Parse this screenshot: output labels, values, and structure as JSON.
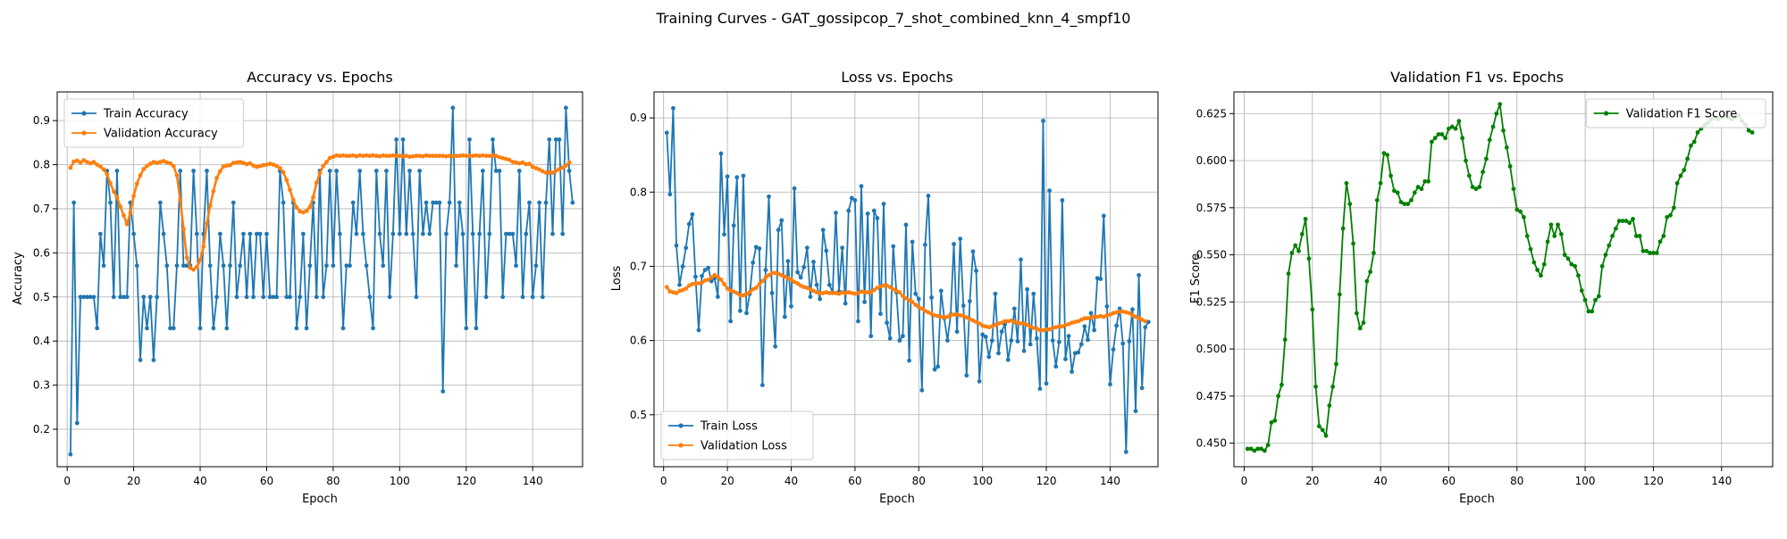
{
  "figure": {
    "suptitle": "Training Curves - GAT_gossipcop_7_shot_combined_knn_4_smpf10"
  },
  "colors": {
    "train": "#1f77b4",
    "validation": "#ff7f0e",
    "f1": "#008000",
    "grid": "#b0b0b0"
  },
  "chart_data": [
    {
      "type": "line",
      "title": "Accuracy vs. Epochs",
      "xlabel": "Epoch",
      "ylabel": "Accuracy",
      "xlim": [
        -3,
        155
      ],
      "ylim": [
        0.115,
        0.965
      ],
      "xticks": [
        0,
        20,
        40,
        60,
        80,
        100,
        120,
        140
      ],
      "yticks": [
        0.2,
        0.3,
        0.4,
        0.5,
        0.6,
        0.7,
        0.8,
        0.9
      ],
      "grid": true,
      "legend": "upper-left",
      "x_start": 1,
      "series": [
        {
          "name": "Train Accuracy",
          "color": "#1f77b4",
          "values": [
            0.143,
            0.714,
            0.214,
            0.5,
            0.5,
            0.5,
            0.5,
            0.5,
            0.429,
            0.643,
            0.571,
            0.786,
            0.714,
            0.5,
            0.786,
            0.5,
            0.5,
            0.5,
            0.714,
            0.643,
            0.571,
            0.357,
            0.5,
            0.429,
            0.5,
            0.357,
            0.5,
            0.714,
            0.643,
            0.571,
            0.429,
            0.429,
            0.571,
            0.786,
            0.571,
            0.571,
            0.571,
            0.786,
            0.643,
            0.429,
            0.643,
            0.786,
            0.571,
            0.429,
            0.5,
            0.643,
            0.571,
            0.429,
            0.571,
            0.714,
            0.5,
            0.571,
            0.643,
            0.5,
            0.643,
            0.5,
            0.643,
            0.643,
            0.5,
            0.643,
            0.5,
            0.5,
            0.5,
            0.786,
            0.714,
            0.5,
            0.5,
            0.714,
            0.429,
            0.5,
            0.643,
            0.429,
            0.571,
            0.714,
            0.5,
            0.786,
            0.5,
            0.571,
            0.786,
            0.571,
            0.786,
            0.643,
            0.429,
            0.571,
            0.571,
            0.714,
            0.643,
            0.786,
            0.643,
            0.571,
            0.5,
            0.429,
            0.786,
            0.643,
            0.571,
            0.786,
            0.5,
            0.643,
            0.857,
            0.643,
            0.857,
            0.643,
            0.786,
            0.643,
            0.5,
            0.786,
            0.643,
            0.714,
            0.643,
            0.714,
            0.714,
            0.714,
            0.286,
            0.643,
            0.714,
            0.929,
            0.571,
            0.714,
            0.643,
            0.429,
            0.857,
            0.643,
            0.429,
            0.643,
            0.786,
            0.5,
            0.643,
            0.857,
            0.786,
            0.786,
            0.5,
            0.643,
            0.643,
            0.643,
            0.571,
            0.786,
            0.5,
            0.643,
            0.714,
            0.5,
            0.571,
            0.714,
            0.5,
            0.714,
            0.857,
            0.643,
            0.857,
            0.857,
            0.643,
            0.929,
            0.786,
            0.714
          ]
        },
        {
          "name": "Validation Accuracy",
          "color": "#ff7f0e",
          "values": [
            0.793,
            0.807,
            0.809,
            0.805,
            0.81,
            0.806,
            0.803,
            0.806,
            0.8,
            0.796,
            0.789,
            0.778,
            0.758,
            0.739,
            0.726,
            0.705,
            0.685,
            0.665,
            0.691,
            0.729,
            0.757,
            0.776,
            0.79,
            0.797,
            0.802,
            0.806,
            0.804,
            0.806,
            0.808,
            0.805,
            0.803,
            0.797,
            0.776,
            0.72,
            0.654,
            0.589,
            0.566,
            0.562,
            0.568,
            0.584,
            0.614,
            0.666,
            0.707,
            0.74,
            0.77,
            0.785,
            0.796,
            0.798,
            0.799,
            0.804,
            0.805,
            0.806,
            0.804,
            0.801,
            0.803,
            0.798,
            0.795,
            0.797,
            0.799,
            0.8,
            0.802,
            0.8,
            0.797,
            0.792,
            0.783,
            0.765,
            0.743,
            0.72,
            0.703,
            0.694,
            0.692,
            0.695,
            0.704,
            0.726,
            0.759,
            0.781,
            0.797,
            0.806,
            0.815,
            0.818,
            0.821,
            0.82,
            0.821,
            0.82,
            0.82,
            0.821,
            0.819,
            0.821,
            0.82,
            0.821,
            0.82,
            0.821,
            0.82,
            0.819,
            0.821,
            0.82,
            0.82,
            0.821,
            0.82,
            0.82,
            0.819,
            0.82,
            0.818,
            0.819,
            0.82,
            0.82,
            0.819,
            0.821,
            0.82,
            0.82,
            0.82,
            0.82,
            0.82,
            0.819,
            0.82,
            0.819,
            0.82,
            0.82,
            0.821,
            0.82,
            0.82,
            0.82,
            0.821,
            0.82,
            0.821,
            0.82,
            0.82,
            0.821,
            0.82,
            0.817,
            0.815,
            0.813,
            0.811,
            0.806,
            0.805,
            0.803,
            0.805,
            0.801,
            0.802,
            0.795,
            0.792,
            0.789,
            0.785,
            0.782,
            0.782,
            0.782,
            0.786,
            0.79,
            0.793,
            0.798,
            0.805
          ]
        }
      ]
    },
    {
      "type": "line",
      "title": "Loss vs. Epochs",
      "xlabel": "Epoch",
      "ylabel": "Loss",
      "xlim": [
        -3,
        155
      ],
      "ylim": [
        0.43,
        0.935
      ],
      "xticks": [
        0,
        20,
        40,
        60,
        80,
        100,
        120,
        140
      ],
      "yticks": [
        0.5,
        0.6,
        0.7,
        0.8,
        0.9
      ],
      "grid": true,
      "legend": "lower-left",
      "x_start": 1,
      "series": [
        {
          "name": "Train Loss",
          "color": "#1f77b4",
          "values": [
            0.88,
            0.797,
            0.913,
            0.728,
            0.675,
            0.7,
            0.725,
            0.757,
            0.77,
            0.686,
            0.614,
            0.687,
            0.695,
            0.698,
            0.68,
            0.684,
            0.659,
            0.852,
            0.743,
            0.821,
            0.626,
            0.755,
            0.82,
            0.64,
            0.822,
            0.637,
            0.663,
            0.705,
            0.726,
            0.724,
            0.54,
            0.695,
            0.794,
            0.664,
            0.592,
            0.749,
            0.762,
            0.632,
            0.707,
            0.646,
            0.805,
            0.692,
            0.685,
            0.699,
            0.725,
            0.659,
            0.706,
            0.675,
            0.656,
            0.749,
            0.721,
            0.675,
            0.665,
            0.772,
            0.666,
            0.725,
            0.65,
            0.775,
            0.792,
            0.789,
            0.626,
            0.808,
            0.652,
            0.771,
            0.606,
            0.775,
            0.765,
            0.636,
            0.784,
            0.624,
            0.603,
            0.727,
            0.665,
            0.6,
            0.606,
            0.756,
            0.573,
            0.733,
            0.663,
            0.656,
            0.533,
            0.729,
            0.795,
            0.658,
            0.561,
            0.565,
            0.667,
            0.63,
            0.6,
            0.635,
            0.73,
            0.612,
            0.737,
            0.647,
            0.553,
            0.653,
            0.72,
            0.694,
            0.545,
            0.608,
            0.605,
            0.578,
            0.6,
            0.663,
            0.583,
            0.612,
            0.622,
            0.574,
            0.6,
            0.643,
            0.599,
            0.709,
            0.586,
            0.669,
            0.595,
            0.663,
            0.603,
            0.535,
            0.896,
            0.542,
            0.802,
            0.6,
            0.565,
            0.598,
            0.789,
            0.575,
            0.606,
            0.558,
            0.583,
            0.584,
            0.595,
            0.619,
            0.601,
            0.637,
            0.614,
            0.684,
            0.683,
            0.768,
            0.646,
            0.541,
            0.588,
            0.62,
            0.643,
            0.596,
            0.45,
            0.599,
            0.642,
            0.505,
            0.688,
            0.536,
            0.618,
            0.625
          ]
        },
        {
          "name": "Validation Loss",
          "color": "#ff7f0e",
          "values": [
            0.672,
            0.666,
            0.665,
            0.664,
            0.667,
            0.668,
            0.67,
            0.674,
            0.676,
            0.677,
            0.677,
            0.678,
            0.681,
            0.682,
            0.685,
            0.688,
            0.686,
            0.682,
            0.676,
            0.67,
            0.667,
            0.666,
            0.664,
            0.661,
            0.661,
            0.663,
            0.665,
            0.669,
            0.671,
            0.676,
            0.68,
            0.685,
            0.688,
            0.691,
            0.691,
            0.69,
            0.688,
            0.686,
            0.684,
            0.682,
            0.679,
            0.677,
            0.674,
            0.672,
            0.671,
            0.669,
            0.667,
            0.665,
            0.664,
            0.664,
            0.665,
            0.664,
            0.664,
            0.664,
            0.663,
            0.665,
            0.664,
            0.665,
            0.664,
            0.663,
            0.664,
            0.666,
            0.665,
            0.665,
            0.665,
            0.668,
            0.671,
            0.673,
            0.674,
            0.674,
            0.672,
            0.669,
            0.667,
            0.665,
            0.66,
            0.657,
            0.654,
            0.652,
            0.648,
            0.645,
            0.643,
            0.64,
            0.638,
            0.636,
            0.634,
            0.633,
            0.632,
            0.631,
            0.632,
            0.634,
            0.635,
            0.635,
            0.634,
            0.633,
            0.631,
            0.629,
            0.627,
            0.625,
            0.623,
            0.62,
            0.619,
            0.618,
            0.619,
            0.621,
            0.623,
            0.624,
            0.626,
            0.626,
            0.627,
            0.625,
            0.624,
            0.623,
            0.623,
            0.621,
            0.619,
            0.617,
            0.616,
            0.614,
            0.614,
            0.615,
            0.615,
            0.617,
            0.618,
            0.619,
            0.619,
            0.621,
            0.622,
            0.624,
            0.625,
            0.626,
            0.628,
            0.63,
            0.63,
            0.631,
            0.632,
            0.632,
            0.633,
            0.632,
            0.634,
            0.635,
            0.637,
            0.638,
            0.639,
            0.639,
            0.638,
            0.637,
            0.634,
            0.632,
            0.63,
            0.628,
            0.626
          ]
        }
      ]
    },
    {
      "type": "line",
      "title": "Validation F1 vs. Epochs",
      "xlabel": "Epoch",
      "ylabel": "F1 Score",
      "xlim": [
        -3,
        155
      ],
      "ylim": [
        0.4375,
        0.6365
      ],
      "xticks": [
        0,
        20,
        40,
        60,
        80,
        100,
        120,
        140
      ],
      "yticks": [
        0.45,
        0.475,
        0.5,
        0.525,
        0.55,
        0.575,
        0.6,
        0.625
      ],
      "grid": true,
      "legend": "upper-right",
      "x_start": 1,
      "series": [
        {
          "name": "Validation F1 Score",
          "color": "#008000",
          "values": [
            0.447,
            0.447,
            0.446,
            0.447,
            0.447,
            0.446,
            0.449,
            0.461,
            0.462,
            0.475,
            0.481,
            0.505,
            0.54,
            0.551,
            0.555,
            0.552,
            0.561,
            0.569,
            0.548,
            0.521,
            0.48,
            0.459,
            0.457,
            0.454,
            0.47,
            0.48,
            0.492,
            0.529,
            0.564,
            0.588,
            0.577,
            0.556,
            0.519,
            0.511,
            0.514,
            0.536,
            0.541,
            0.551,
            0.579,
            0.588,
            0.604,
            0.603,
            0.592,
            0.584,
            0.583,
            0.578,
            0.577,
            0.577,
            0.579,
            0.583,
            0.586,
            0.585,
            0.589,
            0.589,
            0.61,
            0.612,
            0.614,
            0.614,
            0.612,
            0.617,
            0.618,
            0.617,
            0.621,
            0.612,
            0.6,
            0.592,
            0.586,
            0.585,
            0.586,
            0.594,
            0.601,
            0.611,
            0.618,
            0.625,
            0.63,
            0.616,
            0.607,
            0.597,
            0.585,
            0.574,
            0.573,
            0.57,
            0.56,
            0.553,
            0.546,
            0.542,
            0.539,
            0.545,
            0.557,
            0.566,
            0.56,
            0.566,
            0.561,
            0.55,
            0.548,
            0.545,
            0.544,
            0.539,
            0.531,
            0.526,
            0.52,
            0.52,
            0.526,
            0.528,
            0.544,
            0.55,
            0.555,
            0.56,
            0.564,
            0.568,
            0.568,
            0.568,
            0.567,
            0.569,
            0.56,
            0.56,
            0.552,
            0.552,
            0.551,
            0.551,
            0.551,
            0.557,
            0.56,
            0.57,
            0.571,
            0.575,
            0.588,
            0.592,
            0.595,
            0.601,
            0.608,
            0.61,
            0.615,
            0.617,
            0.619,
            0.62,
            0.622,
            0.623,
            0.622,
            0.623,
            0.624,
            0.623,
            0.622,
            0.623,
            0.624,
            0.621,
            0.619,
            0.616,
            0.615
          ]
        }
      ]
    }
  ]
}
